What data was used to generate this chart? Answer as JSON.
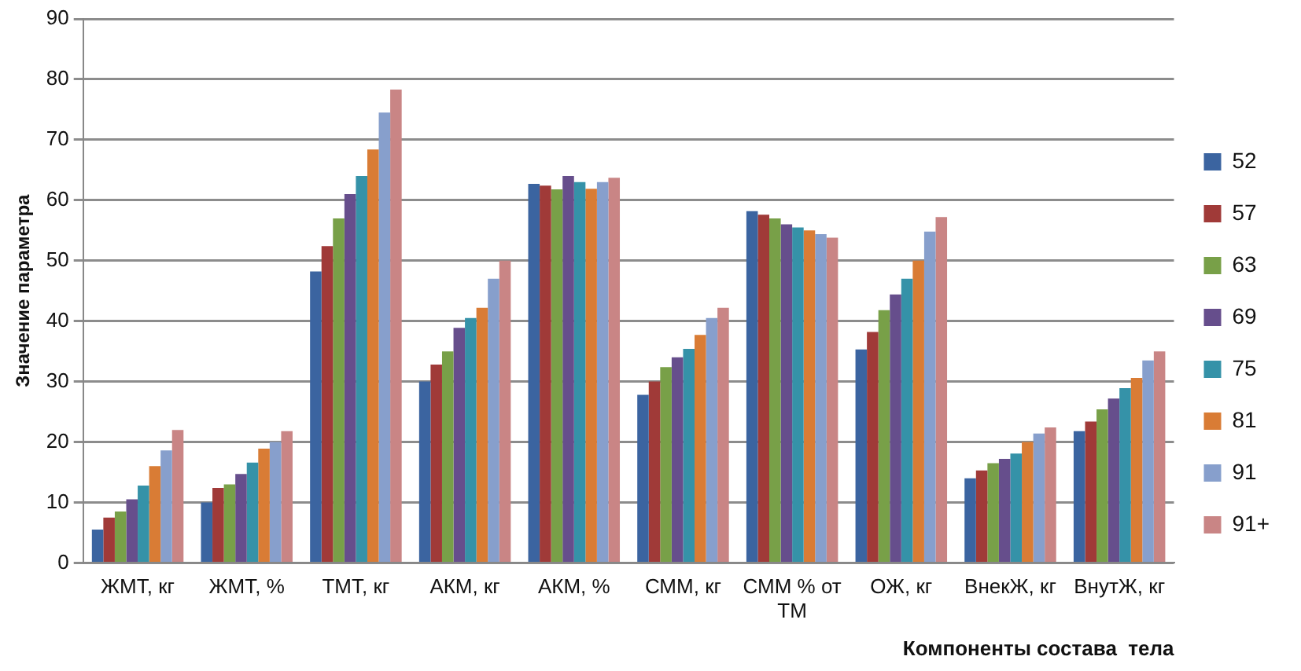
{
  "chart_data": {
    "type": "bar",
    "ylabel": "Значение параметра",
    "xlabel": "Компоненты состава  тела",
    "categories": [
      "ЖМТ, кг",
      "ЖМТ, %",
      "ТМТ, кг",
      "АКМ, кг",
      "АКМ, %",
      "СММ, кг",
      "СММ % от ТМ",
      "ОЖ, кг",
      "ВнекЖ, кг",
      "ВнутЖ, кг"
    ],
    "series": [
      {
        "name": "52",
        "color": "#3b64a0",
        "values": [
          5.5,
          10,
          48.2,
          30,
          62.7,
          27.8,
          58.2,
          35.3,
          14,
          21.8
        ]
      },
      {
        "name": "57",
        "color": "#a03a38",
        "values": [
          7.5,
          12.4,
          52.4,
          32.8,
          62.4,
          30,
          57.6,
          38.2,
          15.3,
          23.4
        ]
      },
      {
        "name": "63",
        "color": "#78a048",
        "values": [
          8.5,
          13,
          57,
          35,
          61.8,
          32.4,
          57,
          41.8,
          16.5,
          25.4
        ]
      },
      {
        "name": "69",
        "color": "#664e8c",
        "values": [
          10.5,
          14.7,
          61,
          38.9,
          64,
          34,
          56,
          44.4,
          17.2,
          27.2
        ]
      },
      {
        "name": "75",
        "color": "#3592a8",
        "values": [
          12.8,
          16.6,
          64,
          40.5,
          63,
          35.4,
          55.5,
          47,
          18.1,
          28.9
        ]
      },
      {
        "name": "81",
        "color": "#d97c35",
        "values": [
          16,
          18.9,
          68.4,
          42.2,
          61.9,
          37.7,
          55,
          50,
          20,
          30.6
        ]
      },
      {
        "name": "91",
        "color": "#879fcc",
        "values": [
          18.6,
          20,
          74.5,
          47,
          63,
          40.5,
          54.4,
          54.8,
          21.4,
          33.5
        ]
      },
      {
        "name": "91+",
        "color": "#c98585",
        "values": [
          22,
          21.8,
          78.3,
          50,
          63.7,
          42.2,
          53.8,
          57.2,
          22.4,
          35
        ]
      }
    ],
    "ylim": [
      0,
      90
    ],
    "yticks": [
      0,
      10,
      20,
      30,
      40,
      50,
      60,
      70,
      80,
      90
    ],
    "grid": "y",
    "legend": "right"
  }
}
